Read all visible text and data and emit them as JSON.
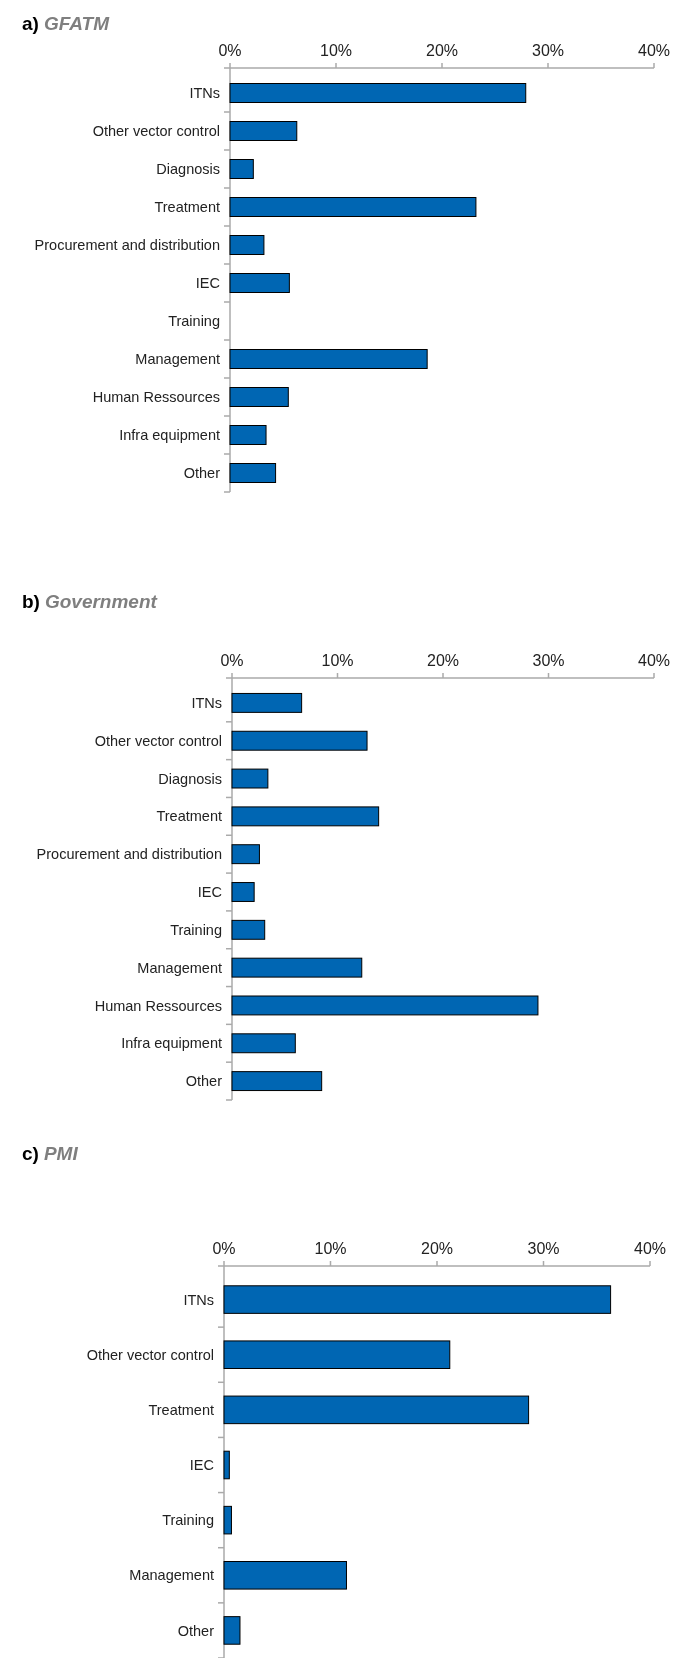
{
  "chart_data": [
    {
      "type": "bar",
      "orientation": "horizontal",
      "title": "a) GFATM",
      "categories": [
        "ITNs",
        "Other vector control",
        "Diagnosis",
        "Treatment",
        "Procurement and distribution",
        "IEC",
        "Training",
        "Management",
        "Human Ressources",
        "Infra equipment",
        "Other"
      ],
      "values": [
        27.9,
        6.3,
        2.2,
        23.2,
        3.2,
        5.6,
        0,
        18.6,
        5.5,
        3.4,
        4.3
      ],
      "color": "#0066b3",
      "xlim": [
        0,
        40
      ],
      "xticks": [
        {
          "value": 0,
          "label": "0%"
        },
        {
          "value": 10,
          "label": "10%"
        },
        {
          "value": 20,
          "label": "20%"
        },
        {
          "value": 30,
          "label": "30%"
        },
        {
          "value": 40,
          "label": "40%"
        }
      ],
      "grid": false
    },
    {
      "type": "bar",
      "orientation": "horizontal",
      "title": "b) Government",
      "categories": [
        "ITNs",
        "Other vector control",
        "Diagnosis",
        "Treatment",
        "Procurement and distribution",
        "IEC",
        "Training",
        "Management",
        "Human Ressources",
        "Infra equipment",
        "Other"
      ],
      "values": [
        6.6,
        12.8,
        3.4,
        13.9,
        2.6,
        2.1,
        3.1,
        12.3,
        29.0,
        6.0,
        8.5
      ],
      "color": "#0066b3",
      "xlim": [
        0,
        40
      ],
      "xticks": [
        {
          "value": 0,
          "label": "0%"
        },
        {
          "value": 10,
          "label": "10%"
        },
        {
          "value": 20,
          "label": "20%"
        },
        {
          "value": 30,
          "label": "30%"
        },
        {
          "value": 40,
          "label": "40%"
        }
      ],
      "grid": false
    },
    {
      "type": "bar",
      "orientation": "horizontal",
      "title": "c) PMI",
      "categories": [
        "ITNs",
        "Other vector control",
        "Treatment",
        "IEC",
        "Training",
        "Management",
        "Other"
      ],
      "values": [
        36.3,
        21.2,
        28.6,
        0.5,
        0.7,
        11.5,
        1.5
      ],
      "color": "#0066b3",
      "xlim": [
        0,
        40
      ],
      "xticks": [
        {
          "value": 0,
          "label": "0%"
        },
        {
          "value": 10,
          "label": "10%"
        },
        {
          "value": 20,
          "label": "20%"
        },
        {
          "value": 30,
          "label": "30%"
        },
        {
          "value": 40,
          "label": "40%"
        }
      ],
      "grid": false
    }
  ]
}
